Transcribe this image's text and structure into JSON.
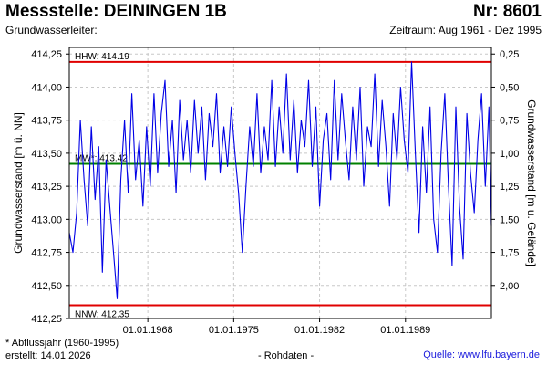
{
  "header": {
    "title": "Messstelle: DEININGEN 1B",
    "number": "Nr: 8601",
    "aquifer": "Grundwasserleiter:",
    "period": "Zeitraum: Aug 1961 - Dez 1995"
  },
  "footer": {
    "footnote": "* Abflussjahr (1960-1995)",
    "created": "erstellt:  14.01.2026",
    "rawdata": "- Rohdaten -",
    "source": "Quelle:  www.lfu.bayern.de"
  },
  "colors": {
    "series": "#0000e6",
    "hhw": "#e00000",
    "nnw": "#e00000",
    "mw": "#008000",
    "grid": "#c8c8c8"
  },
  "chart_data": {
    "type": "line",
    "ylabel_left": "Grundwasserstand [m ü. NN]",
    "ylabel_right": "Grundwasserstand [m u. Gelände]",
    "ylim": [
      412.25,
      414.3
    ],
    "xlim": [
      1961.6,
      1996.0
    ],
    "grid": true,
    "y_ticks_left": [
      {
        "value": 414.25,
        "label": "414,25"
      },
      {
        "value": 414.0,
        "label": "414,00"
      },
      {
        "value": 413.75,
        "label": "413,75"
      },
      {
        "value": 413.5,
        "label": "413,50"
      },
      {
        "value": 413.25,
        "label": "413,25"
      },
      {
        "value": 413.0,
        "label": "413,00"
      },
      {
        "value": 412.75,
        "label": "412,75"
      },
      {
        "value": 412.5,
        "label": "412,50"
      },
      {
        "value": 412.25,
        "label": "412,25"
      }
    ],
    "y_ticks_right": [
      {
        "value": 0.25,
        "label": "0,25"
      },
      {
        "value": 0.5,
        "label": "0,50"
      },
      {
        "value": 0.75,
        "label": "0,75"
      },
      {
        "value": 1.0,
        "label": "1,00"
      },
      {
        "value": 1.25,
        "label": "1,25"
      },
      {
        "value": 1.5,
        "label": "1,50"
      },
      {
        "value": 1.75,
        "label": "1,75"
      },
      {
        "value": 2.0,
        "label": "2,00"
      }
    ],
    "x_ticks": [
      {
        "value": 1968.0,
        "label": "01.01.1968"
      },
      {
        "value": 1975.0,
        "label": "01.01.1975"
      },
      {
        "value": 1982.0,
        "label": "01.01.1982"
      },
      {
        "value": 1989.0,
        "label": "01.01.1989"
      }
    ],
    "reference_lines": [
      {
        "name": "HHW",
        "label": "HHW: 414.19",
        "value": 414.19
      },
      {
        "name": "MW",
        "label": "MW*: 413.42",
        "value": 413.42
      },
      {
        "name": "NNW",
        "label": "NNW: 412.35",
        "value": 412.35
      }
    ],
    "series": [
      {
        "x": [
          1961.6,
          1961.9,
          1962.2,
          1962.5,
          1962.8,
          1963.1,
          1963.4,
          1963.7,
          1964.0,
          1964.3,
          1964.6,
          1964.9,
          1965.2,
          1965.5,
          1965.8,
          1966.1,
          1966.4,
          1966.7,
          1967.0,
          1967.3,
          1967.6,
          1967.9,
          1968.2,
          1968.5,
          1968.8,
          1969.1,
          1969.4,
          1969.7,
          1970.0,
          1970.3,
          1970.6,
          1970.9,
          1971.2,
          1971.5,
          1971.8,
          1972.1,
          1972.4,
          1972.7,
          1973.0,
          1973.3,
          1973.6,
          1973.9,
          1974.2,
          1974.5,
          1974.8,
          1975.1,
          1975.4,
          1975.7,
          1976.0,
          1976.3,
          1976.6,
          1976.9,
          1977.2,
          1977.5,
          1977.8,
          1978.1,
          1978.4,
          1978.7,
          1979.0,
          1979.3,
          1979.6,
          1979.9,
          1980.2,
          1980.5,
          1980.8,
          1981.1,
          1981.4,
          1981.7,
          1982.0,
          1982.3,
          1982.6,
          1982.9,
          1983.2,
          1983.5,
          1983.8,
          1984.1,
          1984.4,
          1984.7,
          1985.0,
          1985.3,
          1985.6,
          1985.9,
          1986.2,
          1986.5,
          1986.8,
          1987.1,
          1987.4,
          1987.7,
          1988.0,
          1988.3,
          1988.6,
          1988.9,
          1989.2,
          1989.5,
          1989.8,
          1990.1,
          1990.4,
          1990.7,
          1991.0,
          1991.3,
          1991.6,
          1991.9,
          1992.2,
          1992.5,
          1992.8,
          1993.1,
          1993.4,
          1993.7,
          1994.0,
          1994.3,
          1994.6,
          1994.9,
          1995.2,
          1995.5,
          1995.8,
          1996.0
        ],
        "y": [
          412.9,
          412.75,
          413.05,
          413.75,
          413.3,
          412.95,
          413.7,
          413.15,
          413.55,
          412.6,
          413.45,
          413.1,
          412.75,
          412.4,
          413.3,
          413.75,
          413.2,
          413.95,
          413.3,
          413.6,
          413.1,
          413.7,
          413.25,
          413.95,
          413.35,
          413.8,
          414.05,
          413.4,
          413.75,
          413.2,
          413.9,
          413.45,
          413.75,
          413.35,
          413.9,
          413.5,
          413.85,
          413.3,
          413.8,
          413.55,
          413.95,
          413.35,
          413.7,
          413.4,
          413.85,
          413.5,
          413.2,
          412.75,
          413.25,
          413.7,
          413.4,
          413.95,
          413.35,
          413.7,
          413.45,
          414.05,
          413.4,
          413.85,
          413.5,
          414.1,
          413.45,
          413.9,
          413.35,
          413.75,
          413.55,
          414.05,
          413.4,
          413.85,
          413.1,
          413.6,
          413.8,
          413.3,
          414.05,
          413.45,
          413.95,
          413.6,
          413.3,
          413.85,
          413.45,
          414.0,
          413.25,
          413.7,
          413.55,
          414.1,
          413.4,
          413.9,
          413.55,
          413.1,
          413.8,
          413.45,
          414.0,
          413.6,
          413.35,
          414.19,
          413.5,
          412.9,
          413.7,
          413.2,
          413.85,
          413.0,
          412.75,
          413.5,
          413.95,
          413.25,
          412.65,
          413.85,
          413.1,
          412.7,
          413.8,
          413.35,
          413.05,
          413.6,
          413.95,
          413.25,
          413.85,
          412.95
        ]
      }
    ]
  }
}
